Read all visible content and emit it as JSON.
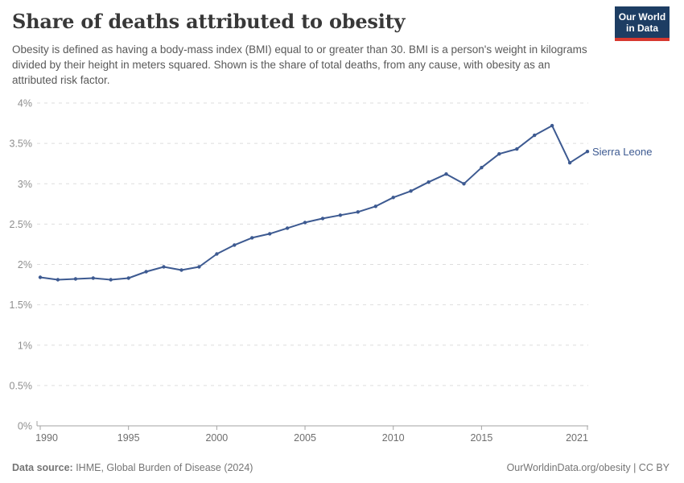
{
  "header": {
    "title": "Share of deaths attributed to obesity",
    "subtitle": "Obesity is defined as having a body-mass index (BMI) equal to or greater than 30. BMI is a person's weight in kilograms divided by their height in meters squared. Shown is the share of total deaths, from any cause, with obesity as an attributed risk factor.",
    "logo": {
      "line1": "Our World",
      "line2": "in Data",
      "bg_color": "#1d3d63",
      "accent_color": "#d7382f"
    }
  },
  "chart_data": {
    "type": "line",
    "title": "Share of deaths attributed to obesity",
    "xlabel": "",
    "ylabel": "",
    "xlim": [
      1990,
      2021
    ],
    "ylim": [
      0,
      4
    ],
    "grid": "horizontal-dashed",
    "legend_position": "end-of-line-label",
    "xticks": [
      1990,
      1995,
      2000,
      2005,
      2010,
      2015,
      2021
    ],
    "yticks": [
      {
        "value": 0,
        "label": "0%"
      },
      {
        "value": 0.5,
        "label": "0.5%"
      },
      {
        "value": 1,
        "label": "1%"
      },
      {
        "value": 1.5,
        "label": "1.5%"
      },
      {
        "value": 2,
        "label": "2%"
      },
      {
        "value": 2.5,
        "label": "2.5%"
      },
      {
        "value": 3,
        "label": "3%"
      },
      {
        "value": 3.5,
        "label": "3.5%"
      },
      {
        "value": 4,
        "label": "4%"
      }
    ],
    "series": [
      {
        "name": "Sierra Leone",
        "color": "#3d5a91",
        "x": [
          1990,
          1991,
          1992,
          1993,
          1994,
          1995,
          1996,
          1997,
          1998,
          1999,
          2000,
          2001,
          2002,
          2003,
          2004,
          2005,
          2006,
          2007,
          2008,
          2009,
          2010,
          2011,
          2012,
          2013,
          2014,
          2015,
          2016,
          2017,
          2018,
          2019,
          2020,
          2021
        ],
        "values": [
          1.84,
          1.81,
          1.82,
          1.83,
          1.81,
          1.83,
          1.91,
          1.97,
          1.93,
          1.97,
          2.13,
          2.24,
          2.33,
          2.38,
          2.45,
          2.52,
          2.57,
          2.61,
          2.65,
          2.72,
          2.83,
          2.91,
          3.02,
          3.12,
          3.0,
          3.2,
          3.37,
          3.43,
          3.6,
          3.72,
          3.26,
          3.4
        ]
      }
    ],
    "style": {
      "gridline_color": "#dedede",
      "axis_line_color": "#a3a3a3",
      "ytick_label_color": "#8f8f8f",
      "xtick_label_color": "#6e6e6e"
    }
  },
  "footer": {
    "datasource_label": "Data source:",
    "datasource_value": " IHME, Global Burden of Disease (2024)",
    "link": "OurWorldinData.org/obesity",
    "separator": " | ",
    "license": "CC BY"
  }
}
